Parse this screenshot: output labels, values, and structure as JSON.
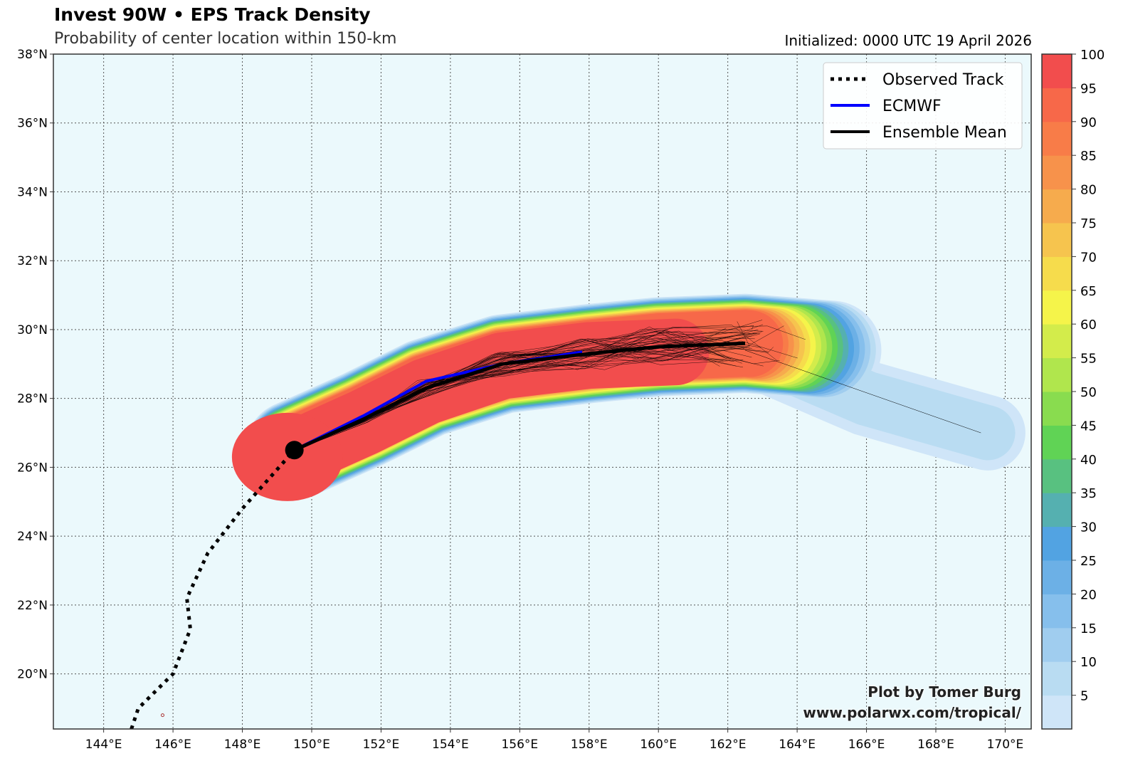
{
  "header": {
    "title": "Invest 90W • EPS Track Density",
    "subtitle": "Probability of center location within 150-km",
    "initialized": "Initialized: 0000 UTC 19 April 2026"
  },
  "credits": {
    "line1": "Plot by Tomer Burg",
    "line2": "www.polarwx.com/tropical/"
  },
  "legend": {
    "items": [
      {
        "label": "Observed Track",
        "color": "#000000",
        "style": "dotted"
      },
      {
        "label": "ECMWF",
        "color": "#0000ff",
        "style": "solid"
      },
      {
        "label": "Ensemble Mean",
        "color": "#000000",
        "style": "solid"
      }
    ]
  },
  "chart_data": {
    "type": "heatmap",
    "title": "Invest 90W • EPS Track Density",
    "xlim": [
      142.55,
      170.75
    ],
    "ylim": [
      18.4,
      38.0
    ],
    "x_ticks": [
      144,
      146,
      148,
      150,
      152,
      154,
      156,
      158,
      160,
      162,
      164,
      166,
      168,
      170
    ],
    "x_tick_labels": [
      "144°E",
      "146°E",
      "148°E",
      "150°E",
      "152°E",
      "154°E",
      "156°E",
      "158°E",
      "160°E",
      "162°E",
      "164°E",
      "166°E",
      "168°E",
      "170°E"
    ],
    "y_ticks": [
      20,
      22,
      24,
      26,
      28,
      30,
      32,
      34,
      36,
      38
    ],
    "y_tick_labels": [
      "20°N",
      "22°N",
      "24°N",
      "26°N",
      "28°N",
      "30°N",
      "32°N",
      "34°N",
      "36°N",
      "38°N"
    ],
    "grid": true,
    "legend_position": "top-right",
    "colorbar": {
      "levels": [
        0,
        5,
        10,
        15,
        20,
        25,
        30,
        35,
        40,
        45,
        50,
        55,
        60,
        65,
        70,
        75,
        80,
        85,
        90,
        95,
        100
      ],
      "tick_labels": [
        "5",
        "10",
        "15",
        "20",
        "25",
        "30",
        "35",
        "40",
        "45",
        "50",
        "55",
        "60",
        "65",
        "70",
        "75",
        "80",
        "85",
        "90",
        "95",
        "100"
      ],
      "colors": [
        "#cfe5f8",
        "#b9dcf2",
        "#a0cdef",
        "#86bfec",
        "#6cb0e6",
        "#52a3e2",
        "#55b0b0",
        "#58c180",
        "#60d355",
        "#89dc4f",
        "#b0e64d",
        "#d3ec4b",
        "#f5f44a",
        "#f6dc4c",
        "#f6c44e",
        "#f6ab4d",
        "#f7924b",
        "#f87c48",
        "#f76849",
        "#f24d4d"
      ]
    },
    "ensemble_mean": {
      "lon": [
        149.5,
        151.5,
        153.3,
        155.5,
        158.0,
        160.0,
        162.5
      ],
      "lat": [
        26.5,
        27.4,
        28.3,
        29.0,
        29.3,
        29.5,
        29.6
      ]
    },
    "ecmwf": {
      "lon": [
        149.5,
        151.5,
        153.3,
        155.5,
        157.8
      ],
      "lat": [
        26.5,
        27.5,
        28.5,
        29.0,
        29.35
      ]
    },
    "observed": {
      "lon": [
        144.8,
        145.0,
        146.0,
        146.5,
        146.4,
        147.0,
        148.0,
        149.5
      ],
      "lat": [
        18.4,
        19.0,
        20.0,
        21.3,
        22.2,
        23.5,
        24.8,
        26.5
      ]
    },
    "initial_position": {
      "lon": 149.5,
      "lat": 26.5
    }
  }
}
